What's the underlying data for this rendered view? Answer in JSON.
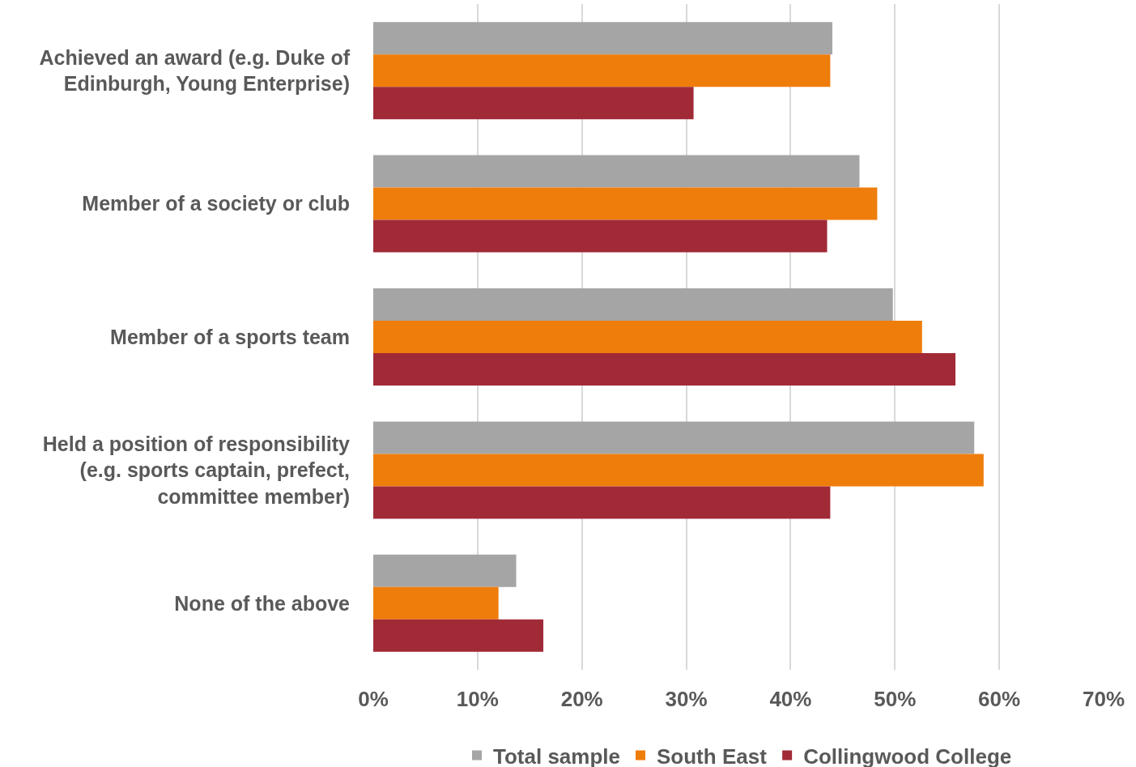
{
  "chart_data": {
    "type": "bar",
    "orientation": "horizontal",
    "categories": [
      "Achieved an award (e.g. Duke of Edinburgh, Young Enterprise)",
      "Member of a society or club",
      "Member of a sports team",
      "Held a position of responsibility (e.g. sports captain, prefect, committee member)",
      "None of the above"
    ],
    "series": [
      {
        "name": "Total sample",
        "color": "#a5a5a5",
        "values": [
          44.0,
          46.6,
          49.8,
          57.6,
          13.7
        ]
      },
      {
        "name": "South East",
        "color": "#ef7d0b",
        "values": [
          43.8,
          48.3,
          52.6,
          58.5,
          12.0
        ]
      },
      {
        "name": "Collingwood College",
        "color": "#a12a37",
        "values": [
          30.7,
          43.5,
          55.8,
          43.8,
          16.3
        ]
      }
    ],
    "xlim": [
      0,
      70
    ],
    "xticks": [
      {
        "value": 0,
        "label": "0%"
      },
      {
        "value": 10,
        "label": "10%"
      },
      {
        "value": 20,
        "label": "20%"
      },
      {
        "value": 30,
        "label": "30%"
      },
      {
        "value": 40,
        "label": "40%"
      },
      {
        "value": 50,
        "label": "50%"
      },
      {
        "value": 60,
        "label": "60%"
      },
      {
        "value": 70,
        "label": "70%"
      }
    ],
    "grid": "x",
    "legend": "bottom"
  }
}
